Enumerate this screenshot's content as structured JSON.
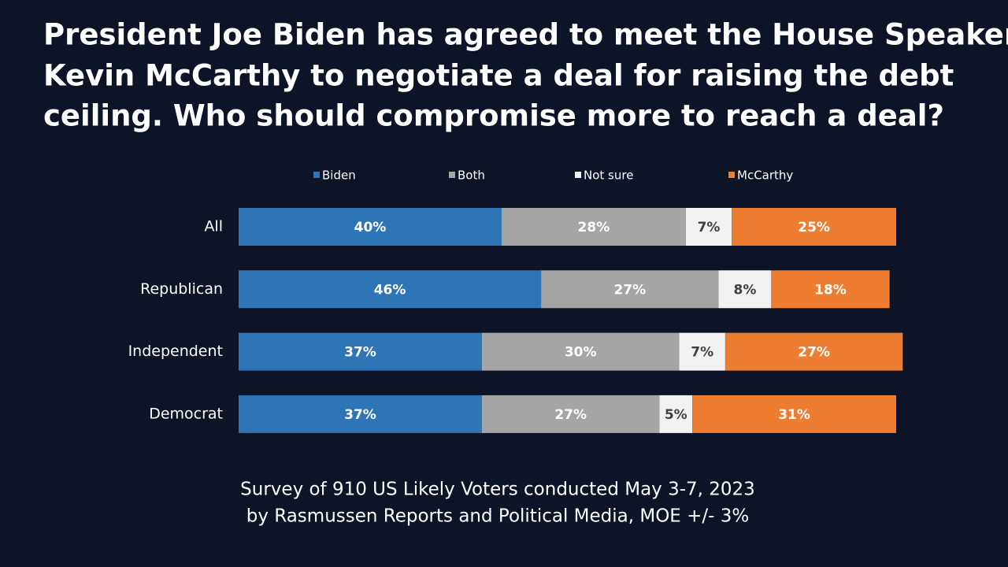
{
  "chart_data": {
    "type": "bar",
    "orientation": "horizontal",
    "stacked": true,
    "title": [
      "President Joe Biden has agreed to meet the House Speaker",
      "Kevin McCarthy to negotiate a deal for raising the debt",
      "ceiling.  Who should compromise more to reach a deal?"
    ],
    "footnote": [
      "Survey of 910 US Likely Voters conducted May 3-7, 2023",
      "by Rasmussen Reports and Political Media, MOE +/- 3%"
    ],
    "categories": [
      "All",
      "Republican",
      "Independent",
      "Democrat"
    ],
    "xlim": [
      0,
      100
    ],
    "series": [
      {
        "name": "Biden",
        "color": "#2e75b6",
        "label_color": "#ffffff",
        "values": [
          40,
          46,
          37,
          37
        ],
        "value_labels": [
          "40%",
          "46%",
          "37%",
          "37%"
        ]
      },
      {
        "name": "Both",
        "color": "#a5a5a5",
        "label_color": "#ffffff",
        "values": [
          28,
          27,
          30,
          27
        ],
        "value_labels": [
          "28%",
          "27%",
          "30%",
          "27%"
        ]
      },
      {
        "name": "Not sure",
        "color": "#f2f2f2",
        "label_color": "#404040",
        "values": [
          7,
          8,
          7,
          5
        ],
        "value_labels": [
          "7%",
          "8%",
          "7%",
          "5%"
        ]
      },
      {
        "name": "McCarthy",
        "color": "#ed7d31",
        "label_color": "#ffffff",
        "values": [
          25,
          18,
          27,
          31
        ],
        "value_labels": [
          "25%",
          "18%",
          "27%",
          "31%"
        ]
      }
    ]
  }
}
